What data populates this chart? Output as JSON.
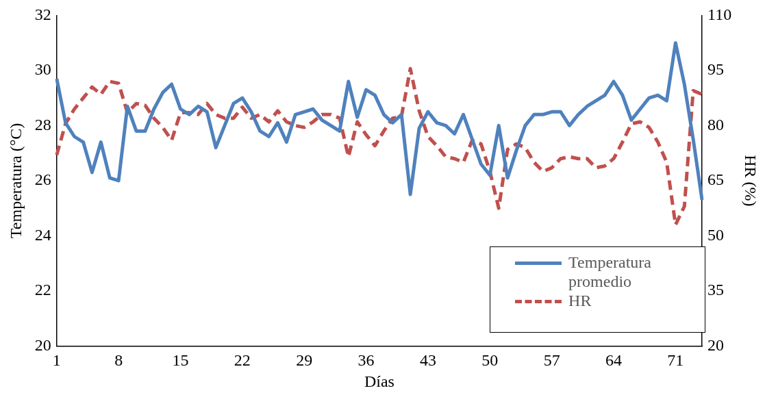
{
  "chart_data": {
    "type": "line",
    "xlabel": "Días",
    "ylabel": "Temperatura (°C)",
    "y2label": "HR (%)",
    "categories": [
      "1",
      null,
      null,
      null,
      null,
      null,
      null,
      "8",
      null,
      null,
      null,
      null,
      null,
      null,
      "15",
      null,
      null,
      null,
      null,
      null,
      null,
      "22",
      null,
      null,
      null,
      null,
      null,
      null,
      "29",
      null,
      null,
      null,
      null,
      null,
      null,
      "36",
      null,
      null,
      null,
      null,
      null,
      null,
      "43",
      null,
      null,
      null,
      null,
      null,
      null,
      "50",
      null,
      null,
      null,
      null,
      null,
      null,
      "57",
      null,
      null,
      null,
      null,
      null,
      null,
      "64",
      null,
      null,
      null,
      null,
      null,
      null,
      "71",
      null,
      null,
      null
    ],
    "series": [
      {
        "name": "Temperatura promedio",
        "color": "#4f81bd",
        "line_style": "solid",
        "values": [
          29.7,
          28.1,
          27.6,
          27.4,
          26.3,
          27.4,
          26.1,
          26.0,
          28.7,
          27.8,
          27.8,
          28.6,
          29.2,
          29.5,
          28.6,
          28.4,
          28.7,
          28.5,
          27.2,
          28.0,
          28.8,
          29.0,
          28.5,
          27.8,
          27.6,
          28.1,
          27.4,
          28.4,
          28.5,
          28.6,
          28.2,
          28.0,
          27.8,
          29.6,
          28.3,
          29.3,
          29.1,
          28.4,
          28.1,
          28.4,
          25.5,
          27.9,
          28.5,
          28.1,
          28.0,
          27.7,
          28.4,
          27.5,
          26.6,
          26.2,
          28.0,
          26.1,
          27.1,
          28.0,
          28.4,
          28.4,
          28.5,
          28.5,
          28.0,
          28.4,
          28.7,
          28.9,
          29.1,
          29.6,
          29.1,
          28.2,
          28.6,
          29.0,
          29.1,
          28.9,
          31.0,
          29.5,
          27.5,
          25.3
        ]
      },
      {
        "name": "HR",
        "color": "#c0504d",
        "line_style": "dashed",
        "axis": "y2",
        "values": [
          72,
          80.5,
          84.5,
          87.5,
          90.5,
          88.5,
          92,
          91.5,
          83.5,
          86,
          85.5,
          82,
          79.5,
          76,
          83.5,
          83.5,
          83,
          86,
          83,
          82,
          82,
          85,
          82,
          83,
          81,
          84,
          81,
          80,
          79.5,
          81,
          83,
          83,
          82,
          71.5,
          81,
          77.5,
          74.5,
          78.5,
          82,
          82.5,
          95.5,
          84,
          77,
          74.5,
          71.5,
          71,
          70,
          76,
          75,
          67.5,
          57.5,
          73.5,
          75,
          74,
          70,
          67.5,
          68.5,
          71,
          71.5,
          71,
          71,
          68.5,
          69,
          71,
          75.5,
          80.5,
          81,
          79.5,
          75.5,
          70,
          53,
          58,
          89.5,
          88.5
        ]
      }
    ],
    "ylim": [
      20,
      32
    ],
    "yticks": [
      20,
      22,
      24,
      26,
      28,
      30,
      32
    ],
    "y2lim": [
      20,
      110
    ],
    "y2ticks": [
      20,
      35,
      50,
      65,
      80,
      95,
      110
    ],
    "legend": "bottom right",
    "grid": false,
    "marker": "none"
  }
}
